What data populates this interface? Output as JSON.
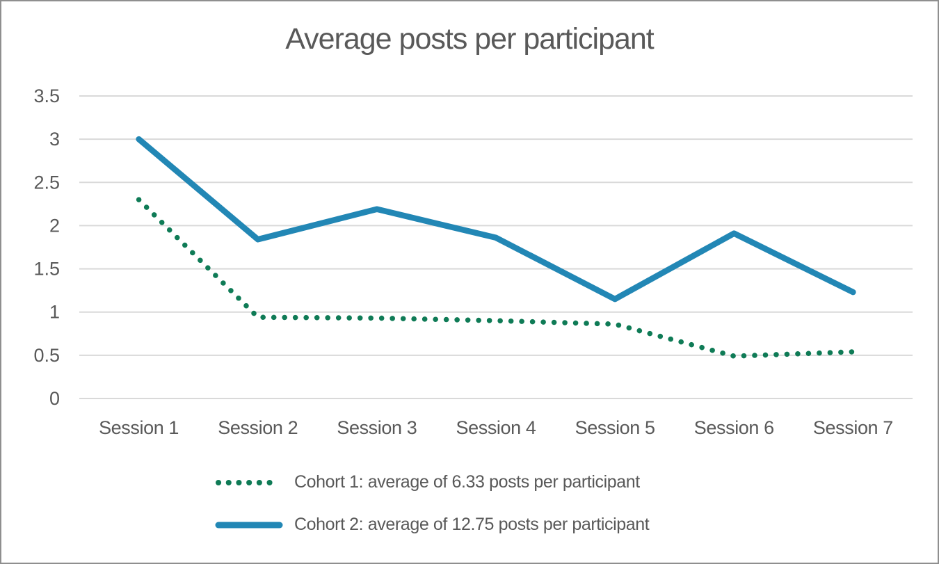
{
  "chart_data": {
    "type": "line",
    "title": "Average posts per participant",
    "categories": [
      "Session 1",
      "Session 2",
      "Session 3",
      "Session 4",
      "Session 5",
      "Session 6",
      "Session 7"
    ],
    "series": [
      {
        "name": "Cohort 1: average of 6.33 posts per participant",
        "style": "dotted",
        "color": "#0f7b56",
        "values": [
          2.3,
          0.94,
          0.93,
          0.9,
          0.86,
          0.49,
          0.54
        ]
      },
      {
        "name": "Cohort 2: average of 12.75 posts per participant",
        "style": "solid",
        "color": "#2287b5",
        "values": [
          3.0,
          1.84,
          2.19,
          1.86,
          1.15,
          1.91,
          1.23
        ]
      }
    ],
    "ylim": [
      0,
      3.5
    ],
    "ytick_labels": [
      "0",
      "0.5",
      "1",
      "1.5",
      "2",
      "2.5",
      "3",
      "3.5"
    ],
    "ytick_values": [
      0,
      0.5,
      1,
      1.5,
      2,
      2.5,
      3,
      3.5
    ],
    "xlabel": "",
    "ylabel": "",
    "grid": true,
    "legend_position": "bottom-left",
    "gridline_color": "#d9d9d9",
    "text_color": "#595959"
  }
}
